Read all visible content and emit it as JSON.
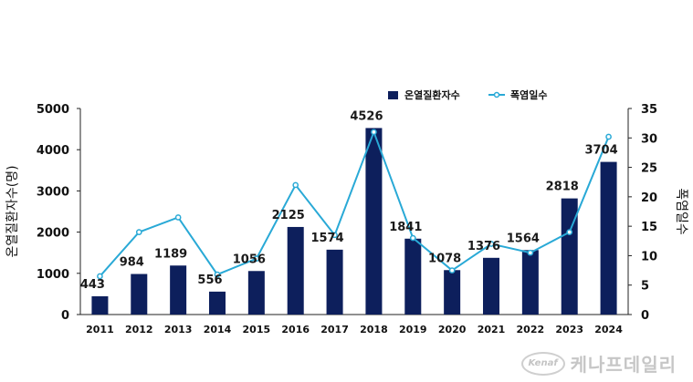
{
  "chart_data": {
    "type": "bar",
    "categories": [
      "2011",
      "2012",
      "2013",
      "2014",
      "2015",
      "2016",
      "2017",
      "2018",
      "2019",
      "2020",
      "2021",
      "2022",
      "2023",
      "2024"
    ],
    "series": [
      {
        "name": "온열질환자수",
        "type": "bar",
        "axis": "left",
        "color": "#0d1f5c",
        "values": [
          443,
          984,
          1189,
          556,
          1056,
          2125,
          1574,
          4526,
          1841,
          1078,
          1376,
          1564,
          2818,
          3704
        ]
      },
      {
        "name": "폭염일수",
        "type": "line",
        "axis": "right",
        "color": "#29a9d6",
        "values": [
          6.5,
          14.0,
          16.5,
          6.8,
          9.5,
          22.0,
          13.5,
          31.0,
          13.0,
          7.5,
          12.0,
          10.5,
          14.0,
          30.2
        ]
      }
    ],
    "ylabel": "온열질환자수(명)",
    "y2label": "폭염일수",
    "ylim": [
      0,
      5000
    ],
    "yticks": [
      "0",
      "1000",
      "2000",
      "3000",
      "4000",
      "5000"
    ],
    "y2lim": [
      0,
      35
    ],
    "y2ticks": [
      "0",
      "5",
      "10",
      "15",
      "20",
      "25",
      "30",
      "35"
    ],
    "legend_position": "top-center",
    "grid": false
  },
  "watermark": {
    "logo_text": "Kenaf",
    "brand_text": "케나프데일리"
  }
}
